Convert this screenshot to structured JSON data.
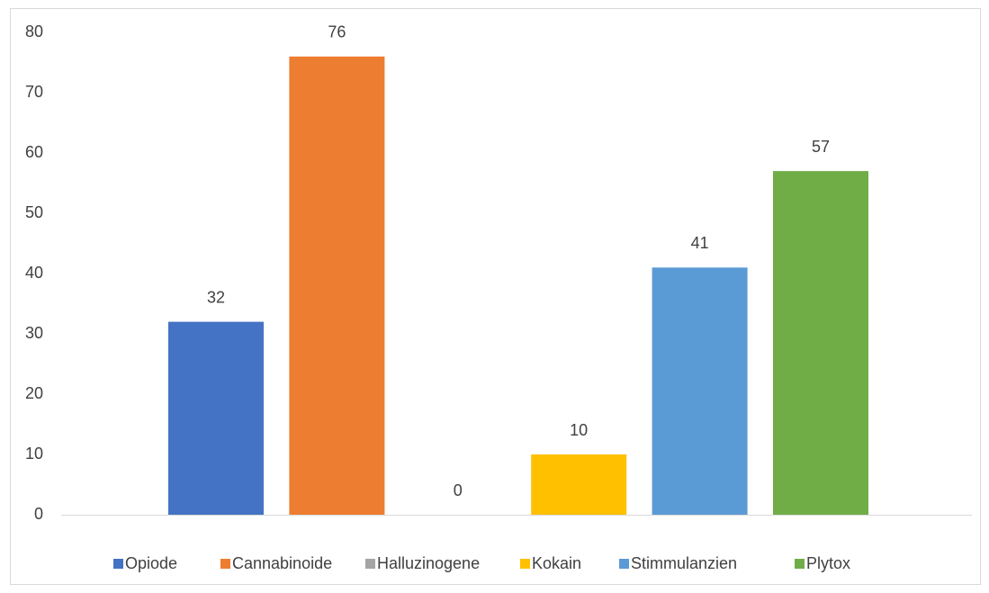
{
  "chart_data": {
    "type": "bar",
    "series": [
      {
        "name": "Opiode",
        "color": "#4472c4",
        "values": [
          32
        ]
      },
      {
        "name": "Cannabinoide",
        "color": "#ed7d31",
        "values": [
          76
        ]
      },
      {
        "name": "Halluzinogene",
        "color": "#a5a5a5",
        "values": [
          0
        ]
      },
      {
        "name": "Kokain",
        "color": "#ffc000",
        "values": [
          10
        ]
      },
      {
        "name": "Stimmulanzien",
        "color": "#5b9bd5",
        "values": [
          41
        ]
      },
      {
        "name": "Plytox",
        "color": "#70ad47",
        "values": [
          57
        ]
      }
    ],
    "ylim": [
      0,
      80
    ],
    "yticks": [
      0,
      10,
      20,
      30,
      40,
      50,
      60,
      70,
      80
    ],
    "grid": false,
    "legend": "bottom"
  }
}
